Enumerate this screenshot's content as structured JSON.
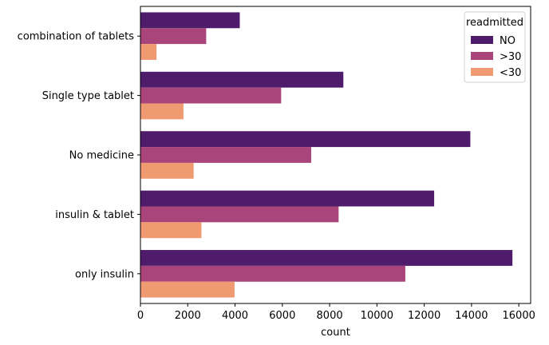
{
  "chart_data": {
    "type": "bar",
    "orientation": "horizontal",
    "categories": [
      "combination of tablets",
      "Single type tablet",
      "No medicine",
      "insulin & tablet",
      "only insulin"
    ],
    "series": [
      {
        "name": "NO",
        "color": "#4f1c6b",
        "values": [
          4200,
          8580,
          13950,
          12420,
          15730
        ]
      },
      {
        "name": ">30",
        "color": "#a9457a",
        "values": [
          2780,
          5950,
          7220,
          8380,
          11200
        ]
      },
      {
        "name": "<30",
        "color": "#f09a72",
        "values": [
          680,
          1820,
          2250,
          2580,
          3980
        ]
      }
    ],
    "xlabel": "count",
    "ylabel": "",
    "xlim": [
      0,
      16500
    ],
    "x_ticks": [
      0,
      2000,
      4000,
      6000,
      8000,
      10000,
      12000,
      14000,
      16000
    ],
    "legend": {
      "title": "readmitted",
      "placement": "top-right"
    },
    "grid": false
  }
}
